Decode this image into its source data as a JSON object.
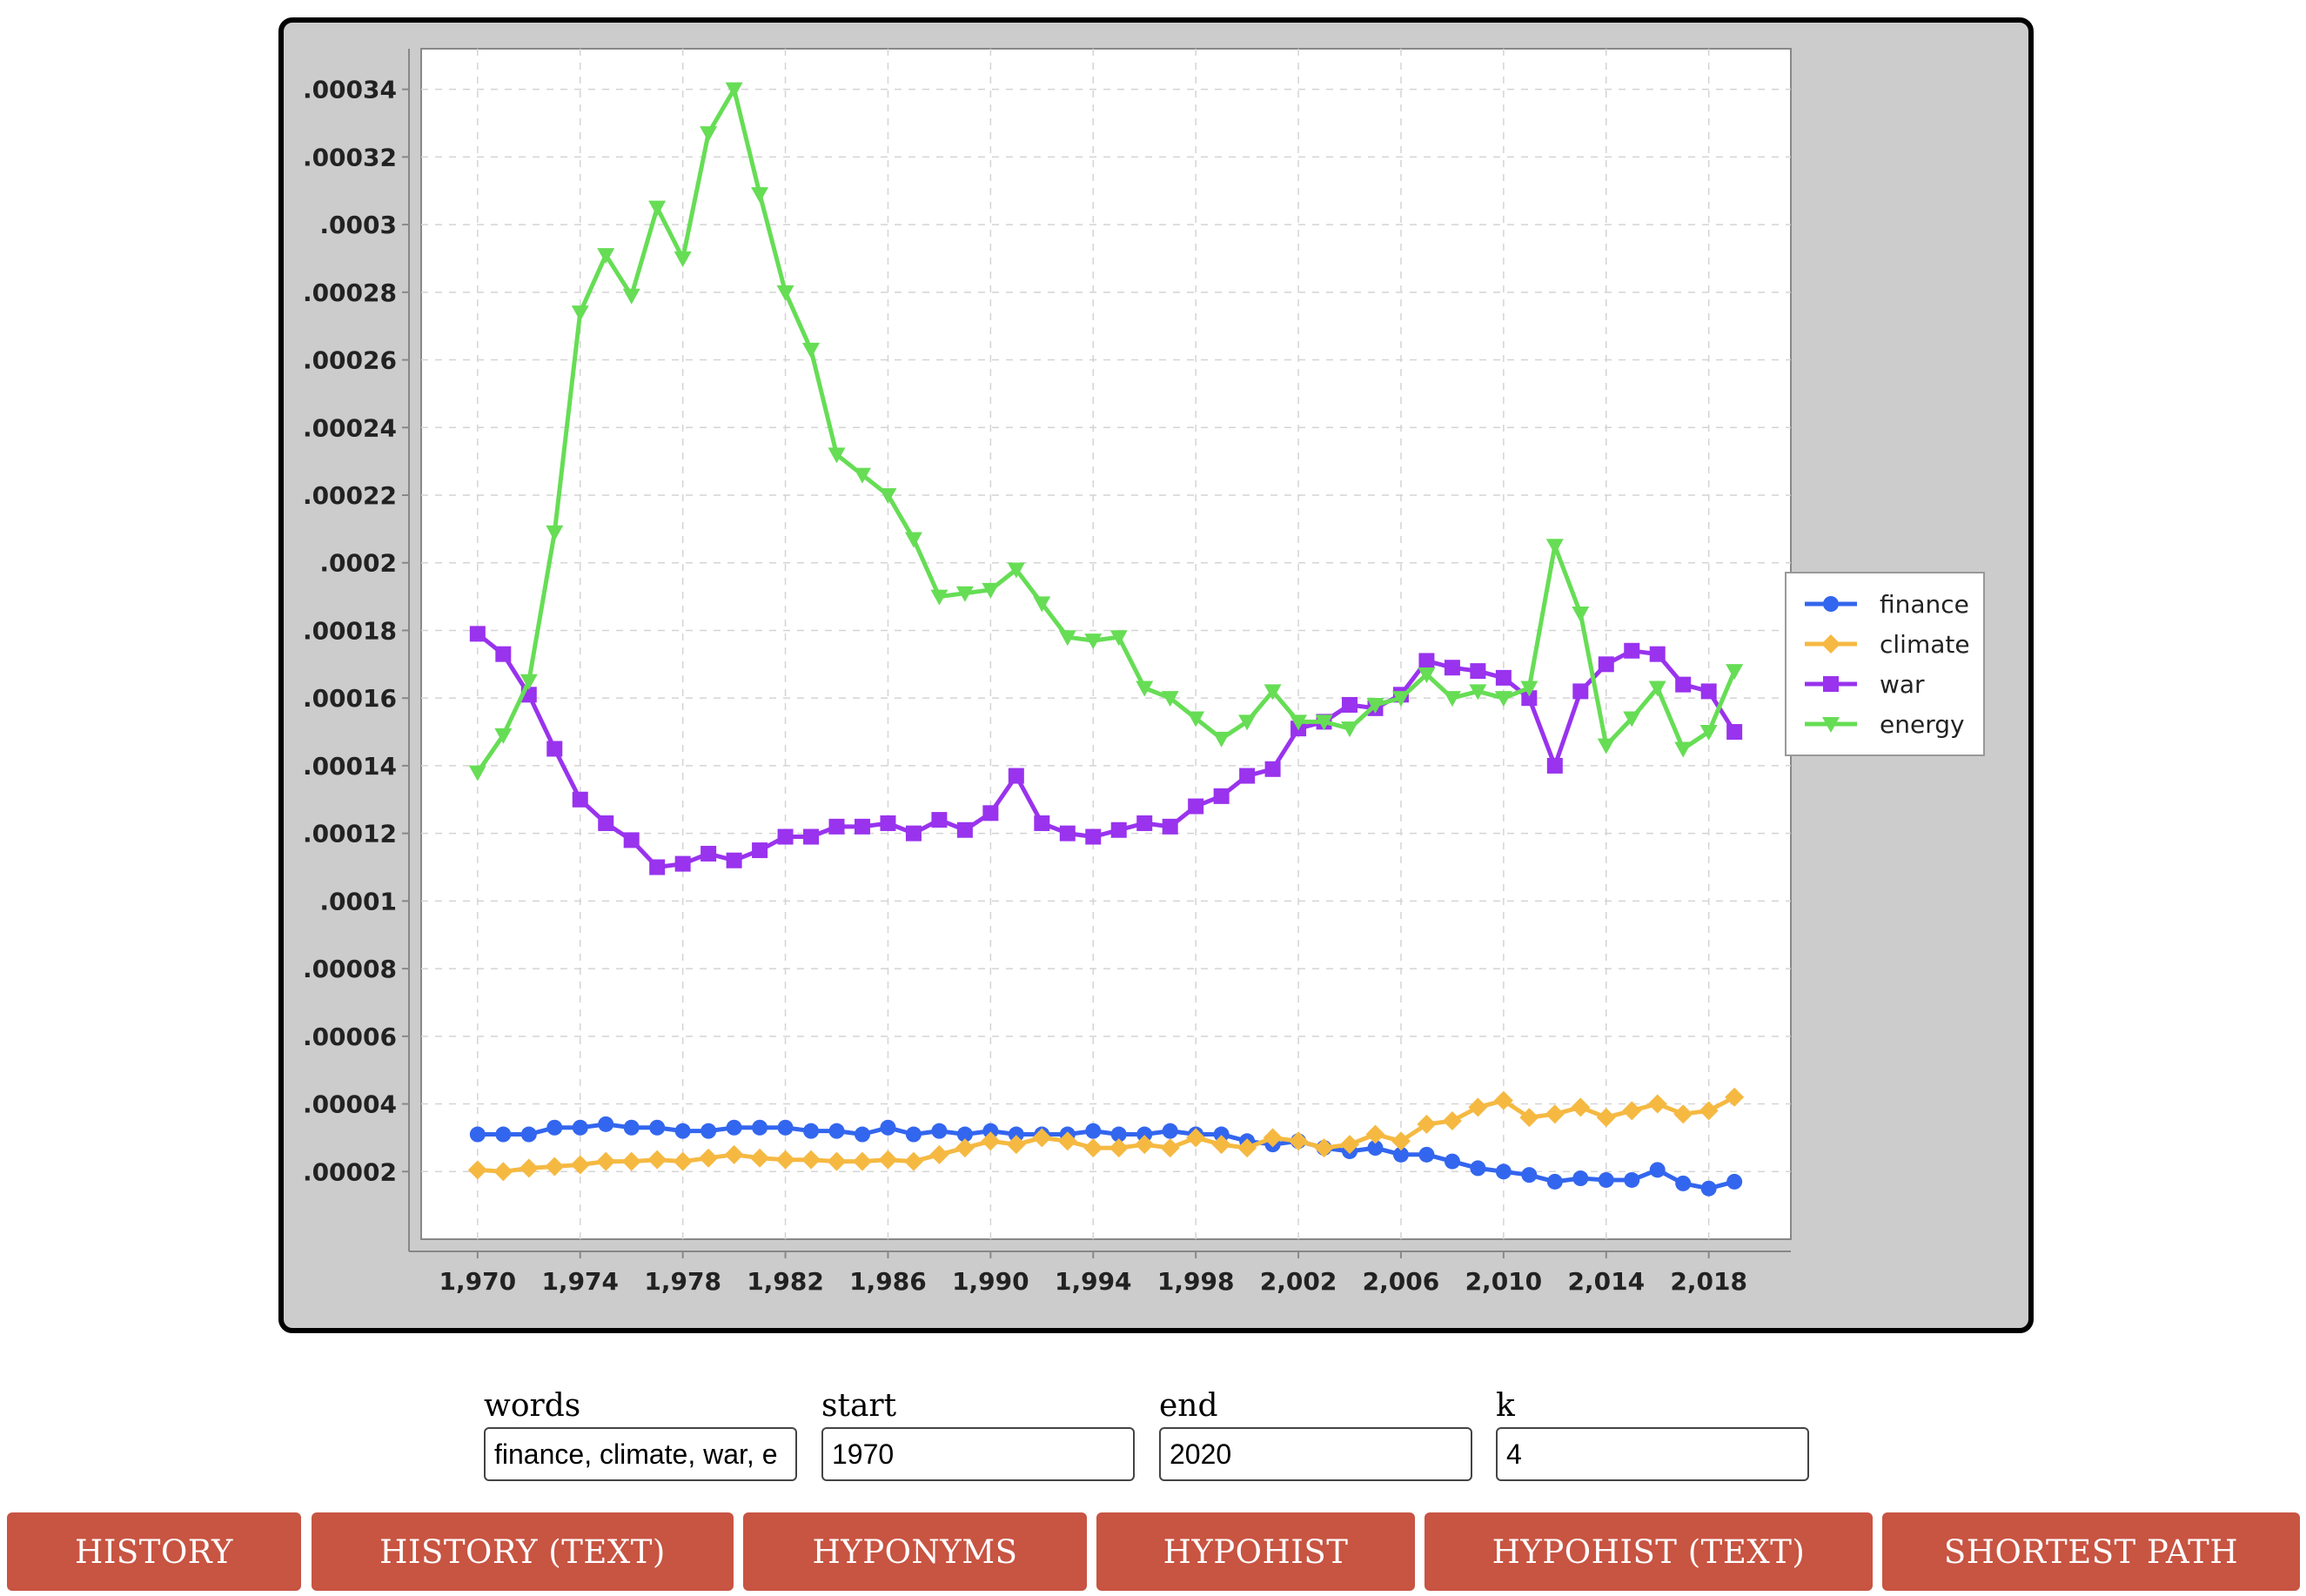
{
  "chart_data": {
    "type": "line",
    "title": "",
    "xlabel": "",
    "ylabel": "",
    "xlim": [
      1967.8,
      2021.2
    ],
    "ylim": [
      0.0,
      0.000352
    ],
    "grid": true,
    "legend_position": "right",
    "x_ticks": [
      1970,
      1974,
      1978,
      1982,
      1986,
      1990,
      1994,
      1998,
      2002,
      2006,
      2010,
      2014,
      2018
    ],
    "x_tick_labels": [
      "1,970",
      "1,974",
      "1,978",
      "1,982",
      "1,986",
      "1,990",
      "1,994",
      "1,998",
      "2,002",
      "2,006",
      "2,010",
      "2,014",
      "2,018"
    ],
    "y_ticks": [
      2e-05,
      4e-05,
      6e-05,
      8e-05,
      0.0001,
      0.00012,
      0.00014,
      0.00016,
      0.00018,
      0.0002,
      0.00022,
      0.00024,
      0.00026,
      0.00028,
      0.0003,
      0.00032,
      0.00034
    ],
    "y_tick_labels": [
      ".00002",
      ".00004",
      ".00006",
      ".00008",
      ".0001",
      ".00012",
      ".00014",
      ".00016",
      ".00018",
      ".0002",
      ".00022",
      ".00024",
      ".00026",
      ".00028",
      ".0003",
      ".00032",
      ".00034"
    ],
    "x": [
      1970,
      1971,
      1972,
      1973,
      1974,
      1975,
      1976,
      1977,
      1978,
      1979,
      1980,
      1981,
      1982,
      1983,
      1984,
      1985,
      1986,
      1987,
      1988,
      1989,
      1990,
      1991,
      1992,
      1993,
      1994,
      1995,
      1996,
      1997,
      1998,
      1999,
      2000,
      2001,
      2002,
      2003,
      2004,
      2005,
      2006,
      2007,
      2008,
      2009,
      2010,
      2011,
      2012,
      2013,
      2014,
      2015,
      2016,
      2017,
      2018,
      2019
    ],
    "series": [
      {
        "name": "finance",
        "color": "#3366ee",
        "marker": "circle",
        "values": [
          3.1e-05,
          3.1e-05,
          3.1e-05,
          3.3e-05,
          3.3e-05,
          3.4e-05,
          3.3e-05,
          3.3e-05,
          3.2e-05,
          3.2e-05,
          3.3e-05,
          3.3e-05,
          3.3e-05,
          3.2e-05,
          3.2e-05,
          3.1e-05,
          3.3e-05,
          3.1e-05,
          3.2e-05,
          3.1e-05,
          3.2e-05,
          3.1e-05,
          3.1e-05,
          3.1e-05,
          3.2e-05,
          3.1e-05,
          3.1e-05,
          3.2e-05,
          3.1e-05,
          3.1e-05,
          2.9e-05,
          2.8e-05,
          2.9e-05,
          2.7e-05,
          2.6e-05,
          2.7e-05,
          2.5e-05,
          2.5e-05,
          2.3e-05,
          2.1e-05,
          2e-05,
          1.9e-05,
          1.7e-05,
          1.8e-05,
          1.75e-05,
          1.75e-05,
          2.05e-05,
          1.65e-05,
          1.5e-05,
          1.7e-05
        ]
      },
      {
        "name": "climate",
        "color": "#f5b942",
        "marker": "diamond",
        "values": [
          2.05e-05,
          2e-05,
          2.1e-05,
          2.15e-05,
          2.2e-05,
          2.3e-05,
          2.3e-05,
          2.35e-05,
          2.3e-05,
          2.4e-05,
          2.5e-05,
          2.4e-05,
          2.35e-05,
          2.35e-05,
          2.3e-05,
          2.3e-05,
          2.35e-05,
          2.3e-05,
          2.5e-05,
          2.7e-05,
          2.9e-05,
          2.8e-05,
          3e-05,
          2.9e-05,
          2.7e-05,
          2.7e-05,
          2.8e-05,
          2.7e-05,
          3e-05,
          2.8e-05,
          2.7e-05,
          3e-05,
          2.9e-05,
          2.7e-05,
          2.8e-05,
          3.1e-05,
          2.9e-05,
          3.4e-05,
          3.5e-05,
          3.9e-05,
          4.1e-05,
          3.6e-05,
          3.7e-05,
          3.9e-05,
          3.6e-05,
          3.8e-05,
          4e-05,
          3.7e-05,
          3.8e-05,
          4.2e-05
        ]
      },
      {
        "name": "war",
        "color": "#9933ee",
        "marker": "square",
        "values": [
          0.000179,
          0.000173,
          0.000161,
          0.000145,
          0.00013,
          0.000123,
          0.000118,
          0.00011,
          0.000111,
          0.000114,
          0.000112,
          0.000115,
          0.000119,
          0.000119,
          0.000122,
          0.000122,
          0.000123,
          0.00012,
          0.000124,
          0.000121,
          0.000126,
          0.000137,
          0.000123,
          0.00012,
          0.000119,
          0.000121,
          0.000123,
          0.000122,
          0.000128,
          0.000131,
          0.000137,
          0.000139,
          0.000151,
          0.000153,
          0.000158,
          0.000157,
          0.000161,
          0.000171,
          0.000169,
          0.000168,
          0.000166,
          0.00016,
          0.00014,
          0.000162,
          0.00017,
          0.000174,
          0.000173,
          0.000164,
          0.000162,
          0.00015
        ]
      },
      {
        "name": "energy",
        "color": "#66dd55",
        "marker": "triangle-down",
        "values": [
          0.000138,
          0.000149,
          0.000165,
          0.000209,
          0.000274,
          0.000291,
          0.000279,
          0.000305,
          0.00029,
          0.000327,
          0.00034,
          0.000309,
          0.00028,
          0.000263,
          0.000232,
          0.000226,
          0.00022,
          0.000207,
          0.00019,
          0.000191,
          0.000192,
          0.000198,
          0.000188,
          0.000178,
          0.000177,
          0.000178,
          0.000163,
          0.00016,
          0.000154,
          0.000148,
          0.000153,
          0.000162,
          0.000153,
          0.000153,
          0.000151,
          0.000158,
          0.00016,
          0.000167,
          0.00016,
          0.000162,
          0.00016,
          0.000163,
          0.000205,
          0.000185,
          0.000146,
          0.000154,
          0.000163,
          0.000145,
          0.00015,
          0.000168
        ]
      }
    ]
  },
  "form": {
    "words": {
      "label": "words",
      "value": "finance, climate, war, e"
    },
    "start": {
      "label": "start",
      "value": "1970"
    },
    "end": {
      "label": "end",
      "value": "2020"
    },
    "k": {
      "label": "k",
      "value": "4"
    }
  },
  "buttons": {
    "history": "History",
    "history_text": "History (Text)",
    "hyponyms": "Hyponyms",
    "hypohist": "Hypohist",
    "hypohist_text": "Hypohist (Text)",
    "shortest_path": "Shortest Path"
  },
  "colors": {
    "button_bg": "#c85442",
    "frame_bg": "#cccccc"
  }
}
